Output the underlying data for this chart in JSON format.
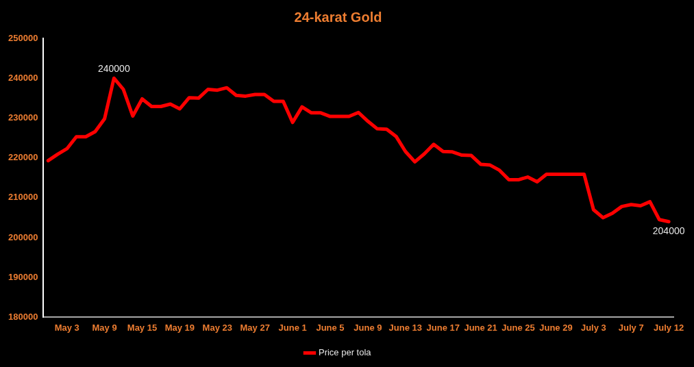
{
  "chart_data": {
    "type": "line",
    "title": "24-karat Gold",
    "categories": [
      null,
      null,
      "May 3",
      null,
      null,
      null,
      "May 9",
      null,
      null,
      null,
      "May 15",
      null,
      null,
      null,
      "May 19",
      null,
      null,
      null,
      "May 23",
      null,
      null,
      null,
      "May 27",
      null,
      null,
      null,
      "June 1",
      null,
      null,
      null,
      "June 5",
      null,
      null,
      null,
      "June 9",
      null,
      null,
      null,
      "June 13",
      null,
      null,
      null,
      "June 17",
      null,
      null,
      null,
      "June 21",
      null,
      null,
      null,
      "June 25",
      null,
      null,
      null,
      "June 29",
      null,
      null,
      null,
      "July 3",
      null,
      null,
      null,
      "July 7",
      null,
      null,
      null,
      "July 12"
    ],
    "series": [
      {
        "name": "Price per tola",
        "color": "#ff0000",
        "values": [
          219300,
          220900,
          222300,
          225300,
          225300,
          226600,
          229800,
          240000,
          237200,
          230500,
          234800,
          232900,
          232900,
          233500,
          232300,
          235100,
          235000,
          237200,
          237000,
          237600,
          235700,
          235500,
          235900,
          235900,
          234200,
          234200,
          228900,
          232800,
          231300,
          231300,
          230400,
          230400,
          230400,
          231400,
          229200,
          227300,
          227200,
          225400,
          221600,
          219000,
          221000,
          223400,
          221600,
          221500,
          220700,
          220600,
          218400,
          218200,
          216900,
          214500,
          214500,
          215200,
          214000,
          215900,
          215900,
          215900,
          215900,
          215900,
          207000,
          205000,
          206100,
          207800,
          208300,
          208000,
          209000,
          204500,
          204000
        ],
        "value_labels": [
          null,
          null,
          null,
          null,
          null,
          null,
          null,
          "240000",
          null,
          null,
          null,
          null,
          null,
          null,
          null,
          null,
          null,
          null,
          null,
          null,
          null,
          null,
          null,
          null,
          null,
          null,
          null,
          null,
          null,
          null,
          null,
          null,
          null,
          null,
          null,
          null,
          null,
          null,
          null,
          null,
          null,
          null,
          null,
          null,
          null,
          null,
          null,
          null,
          null,
          null,
          null,
          null,
          null,
          null,
          null,
          null,
          null,
          null,
          null,
          null,
          null,
          null,
          null,
          null,
          null,
          null,
          "204000"
        ]
      }
    ],
    "ylim": [
      180000,
      250000
    ],
    "yticks": [
      180000,
      190000,
      200000,
      210000,
      220000,
      230000,
      240000,
      250000
    ],
    "grid": false,
    "legend": "bottom",
    "marker": "none",
    "line_style": "solid"
  }
}
